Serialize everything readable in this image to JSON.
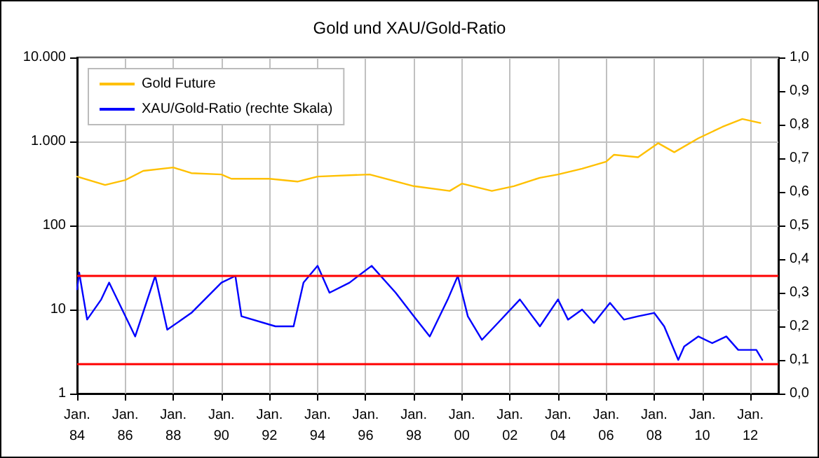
{
  "chart_data": {
    "type": "line",
    "title": "Gold und XAU/Gold-Ratio",
    "xlim": [
      "1984-01",
      "2013-03"
    ],
    "xticks": [
      {
        "value": "1984-01",
        "label": "Jan.\n84"
      },
      {
        "value": "1986-01",
        "label": "Jan.\n86"
      },
      {
        "value": "1988-01",
        "label": "Jan.\n88"
      },
      {
        "value": "1990-01",
        "label": "Jan.\n90"
      },
      {
        "value": "1992-01",
        "label": "Jan.\n92"
      },
      {
        "value": "1994-01",
        "label": "Jan.\n94"
      },
      {
        "value": "1996-01",
        "label": "Jan.\n96"
      },
      {
        "value": "1998-01",
        "label": "Jan.\n98"
      },
      {
        "value": "2000-01",
        "label": "Jan.\n00"
      },
      {
        "value": "2002-01",
        "label": "Jan.\n02"
      },
      {
        "value": "2004-01",
        "label": "Jan.\n04"
      },
      {
        "value": "2006-01",
        "label": "Jan.\n06"
      },
      {
        "value": "2008-01",
        "label": "Jan.\n08"
      },
      {
        "value": "2010-01",
        "label": "Jan.\n10"
      },
      {
        "value": "2012-01",
        "label": "Jan.\n12"
      }
    ],
    "ylim": [
      1,
      10000
    ],
    "log": "y",
    "yticks": [
      1,
      10,
      100,
      {
        "value": 1000,
        "label": "1.000"
      },
      {
        "value": 10000,
        "label": "10.000"
      }
    ],
    "y2lim": [
      0,
      1
    ],
    "y2ticks": [
      {
        "value": 0,
        "label": "0,0"
      },
      {
        "value": 0.1,
        "label": "0,1"
      },
      {
        "value": 0.2,
        "label": "0,2"
      },
      {
        "value": 0.3,
        "label": "0,3"
      },
      {
        "value": 0.4,
        "label": "0,4"
      },
      {
        "value": 0.5,
        "label": "0,5"
      },
      {
        "value": 0.6,
        "label": "0,6"
      },
      {
        "value": 0.7,
        "label": "0,7"
      },
      {
        "value": 0.8,
        "label": "0,8"
      },
      {
        "value": 0.9,
        "label": "0,9"
      },
      {
        "value": 1,
        "label": "1,0"
      }
    ],
    "grid": true,
    "legend": "top left",
    "marker": "none",
    "line_style": "solid",
    "ref_lines": [
      {
        "axis": "y2",
        "value": 0.35,
        "color": "#ff0000"
      },
      {
        "axis": "y2",
        "value": 0.09,
        "color": "#ff0000"
      }
    ],
    "series": [
      {
        "name": "Gold Future",
        "color": "#ffc000",
        "x": [
          "1984-01",
          "1985-03",
          "1986-01",
          "1986-10",
          "1988-01",
          "1988-10",
          "1990-01",
          "1990-06",
          "1992-01",
          "1993-03",
          "1994-01",
          "1996-03",
          "1998-01",
          "1999-07",
          "2000-01",
          "2001-04",
          "2002-03",
          "2003-04",
          "2004-01",
          "2005-01",
          "2006-01",
          "2006-05",
          "2007-05",
          "2008-03",
          "2008-11",
          "2009-11",
          "2010-11",
          "2011-09",
          "2012-06"
        ],
        "values": [
          382,
          304,
          347,
          447,
          490,
          420,
          405,
          360,
          360,
          333,
          382,
          405,
          294,
          258,
          315,
          258,
          294,
          370,
          405,
          475,
          575,
          695,
          650,
          955,
          745,
          1090,
          1490,
          1850,
          1660
        ]
      },
      {
        "name": "XAU/Gold-Ratio (rechte Skala)",
        "color": "#0000ff",
        "axis": "y2",
        "x": [
          "1984-01",
          "1984-02",
          "1984-06",
          "1985-01",
          "1985-05",
          "1986-06",
          "1987-04",
          "1987-10",
          "1988-10",
          "1990-01",
          "1990-08",
          "1990-11",
          "1992-04",
          "1993-01",
          "1993-06",
          "1994-01",
          "1994-07",
          "1995-05",
          "1996-04",
          "1997-04",
          "1998-01",
          "1998-09",
          "1999-06",
          "1999-11",
          "2000-04",
          "2000-11",
          "2001-07",
          "2002-06",
          "2003-04",
          "2004-01",
          "2004-06",
          "2005-01",
          "2005-07",
          "2006-03",
          "2006-10",
          "2007-05",
          "2008-01",
          "2008-06",
          "2009-01",
          "2009-04",
          "2009-11",
          "2010-06",
          "2011-01",
          "2011-07",
          "2012-04",
          "2012-07"
        ],
        "values": [
          0.31,
          0.36,
          0.22,
          0.28,
          0.33,
          0.17,
          0.35,
          0.19,
          0.24,
          0.33,
          0.35,
          0.23,
          0.2,
          0.2,
          0.33,
          0.38,
          0.3,
          0.33,
          0.38,
          0.3,
          0.23,
          0.17,
          0.28,
          0.35,
          0.23,
          0.16,
          0.21,
          0.28,
          0.2,
          0.28,
          0.22,
          0.25,
          0.21,
          0.27,
          0.22,
          0.23,
          0.24,
          0.2,
          0.1,
          0.14,
          0.17,
          0.15,
          0.17,
          0.13,
          0.13,
          0.1
        ]
      }
    ]
  }
}
